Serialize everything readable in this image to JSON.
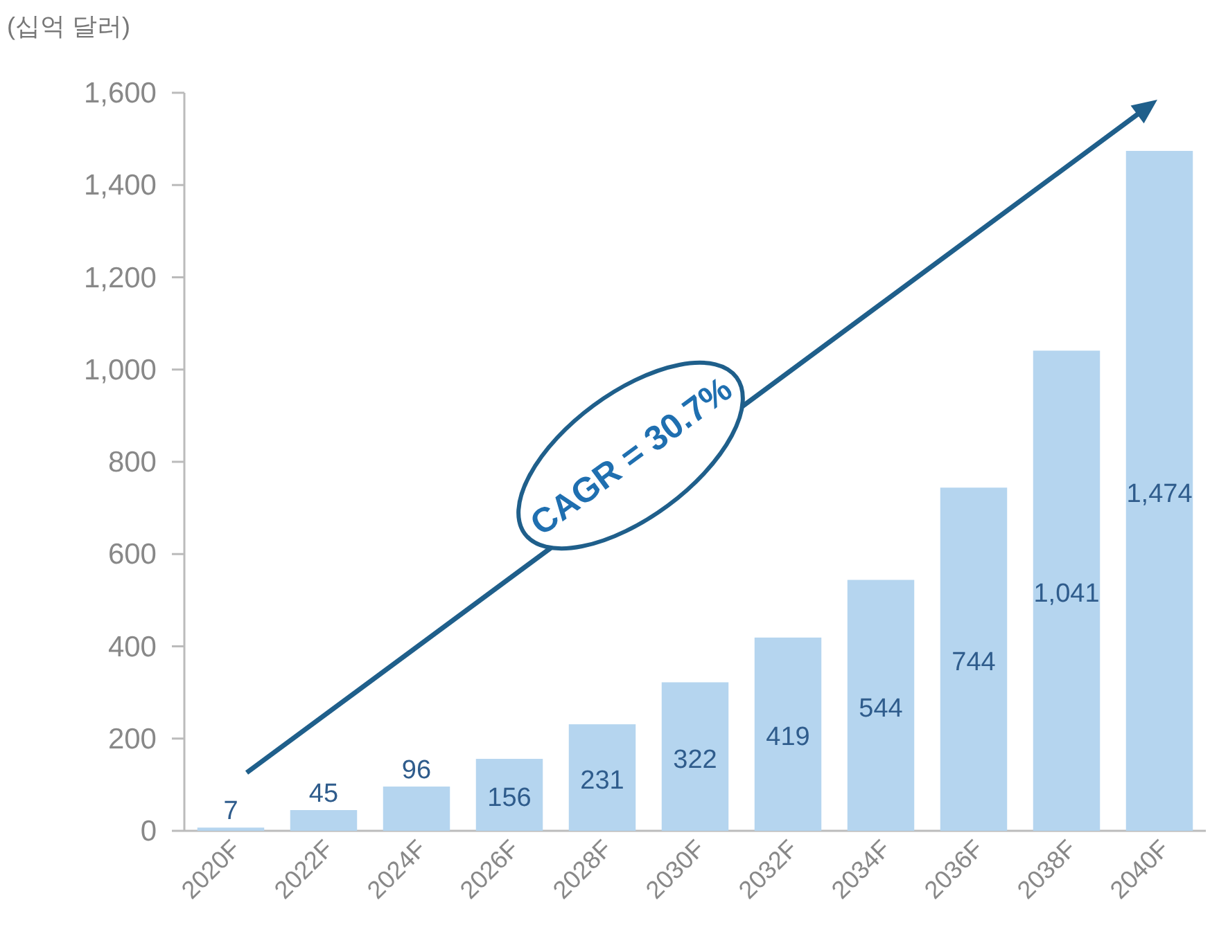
{
  "chart_data": {
    "type": "bar",
    "ylabel": "(십억 달러)",
    "categories": [
      "2020F",
      "2022F",
      "2024F",
      "2026F",
      "2028F",
      "2030F",
      "2032F",
      "2034F",
      "2036F",
      "2038F",
      "2040F"
    ],
    "values": [
      7,
      45,
      96,
      156,
      231,
      322,
      419,
      544,
      744,
      1041,
      1474
    ],
    "color": "#b5d5ef",
    "ylim": [
      0,
      1600
    ],
    "yticks": [
      {
        "value": 0,
        "label": "0"
      },
      {
        "value": 200,
        "label": "200"
      },
      {
        "value": 400,
        "label": "400"
      },
      {
        "value": 600,
        "label": "600"
      },
      {
        "value": 800,
        "label": "800"
      },
      {
        "value": 1000,
        "label": "1,000"
      },
      {
        "value": 1200,
        "label": "1,200"
      },
      {
        "value": 1400,
        "label": "1,400"
      },
      {
        "value": 1600,
        "label": "1,600"
      }
    ],
    "value_labels": [
      "7",
      "45",
      "96",
      "156",
      "231",
      "322",
      "419",
      "544",
      "744",
      "1,041",
      "1,474"
    ],
    "annotations": [
      "CAGR = 30.7%"
    ]
  }
}
